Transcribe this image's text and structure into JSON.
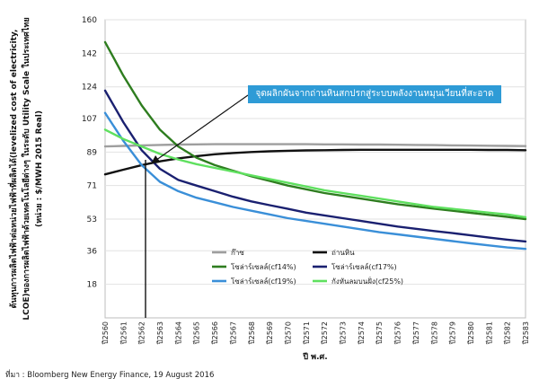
{
  "chart_data": {
    "type": "line",
    "title": "",
    "ylabel_lines": [
      "ต้นทุนการผลิตไฟฟ้าต่อหน่วยไฟฟ้าที่ผลิตได้(levelized cost of electricity,",
      "LCOE)ของการผลิตไฟฟ้าด้วยเทคโนโลยีต่างๆ ในระดับ Utility Scale ในประเทศไทย",
      "(หน่วย : $/MWH 2015 Real)"
    ],
    "xlabel": "ปี พ.ศ.",
    "yticks": [
      18,
      36,
      53,
      71,
      89,
      107,
      124,
      142,
      160
    ],
    "ylim": [
      0,
      160
    ],
    "x": [
      "ปี2560",
      "ปี2561",
      "ปี2562",
      "ปี2563",
      "ปี2564",
      "ปี2565",
      "ปี2566",
      "ปี2567",
      "ปี2568",
      "ปี2569",
      "ปี2570",
      "ปี2571",
      "ปี2572",
      "ปี2573",
      "ปี2574",
      "ปี2575",
      "ปี2576",
      "ปี2577",
      "ปี2578",
      "ปี2579",
      "ปี2580",
      "ปี2581",
      "ปี2582",
      "ปี2583"
    ],
    "series": [
      {
        "name": "ก๊าซ",
        "color": "#9e9e9e",
        "values": [
          92,
          92.3,
          92.6,
          92.8,
          93,
          93.1,
          93.2,
          93.2,
          93.2,
          93.2,
          93.2,
          93.2,
          93.1,
          93.1,
          93,
          93,
          92.9,
          92.8,
          92.7,
          92.6,
          92.5,
          92.4,
          92.3,
          92.2
        ]
      },
      {
        "name": "ถ่านหิน",
        "color": "#111111",
        "values": [
          77,
          79.5,
          82,
          84,
          85.6,
          86.8,
          87.8,
          88.5,
          89,
          89.4,
          89.7,
          89.9,
          90,
          90.1,
          90.2,
          90.2,
          90.2,
          90.2,
          90.2,
          90.2,
          90.2,
          90.1,
          90.1,
          90
        ]
      },
      {
        "name": "โซล่าร์เซลล์(cf14%)",
        "color": "#2e7d1f",
        "values": [
          148,
          130,
          114,
          101,
          92,
          86,
          82,
          79,
          76,
          73.5,
          71,
          69,
          67,
          65.5,
          64,
          62.5,
          61,
          59.8,
          58.6,
          57.5,
          56.4,
          55.3,
          54.2,
          53
        ]
      },
      {
        "name": "โซล่าร์เซลล์(cf17%)",
        "color": "#1a2070",
        "values": [
          122,
          105,
          90,
          80,
          74,
          71,
          68,
          65,
          62.5,
          60.5,
          58.5,
          56.5,
          55,
          53.5,
          52,
          50.5,
          49,
          47.8,
          46.6,
          45.5,
          44.3,
          43.1,
          42,
          41
        ]
      },
      {
        "name": "โซล่าร์เซลล์(cf19%)",
        "color": "#3a8fd8",
        "values": [
          110,
          95,
          82,
          73,
          68,
          64.5,
          62,
          59.5,
          57.5,
          55.5,
          53.5,
          52,
          50.5,
          49,
          47.5,
          46,
          44.8,
          43.6,
          42.4,
          41.2,
          40,
          38.9,
          37.8,
          37
        ]
      },
      {
        "name": "กังหันลมบนฝั่ง(cf25%)",
        "color": "#5fe05f",
        "values": [
          101,
          96,
          92,
          88,
          85,
          82.5,
          80.5,
          78.5,
          76.5,
          74.5,
          72.5,
          70.5,
          68.5,
          67,
          65.5,
          64,
          62.5,
          61,
          59.5,
          58.5,
          57.5,
          56.5,
          55.5,
          54
        ]
      }
    ],
    "legend": "bottom-inside",
    "annotation": "จุดผลิกผันจากถ่านหินสกปรกสู่ระบบพลังงานหมุนเวียนที่สะอาด"
  },
  "source": "ที่มา : Bloomberg New Energy Finance, 19 August 2016"
}
